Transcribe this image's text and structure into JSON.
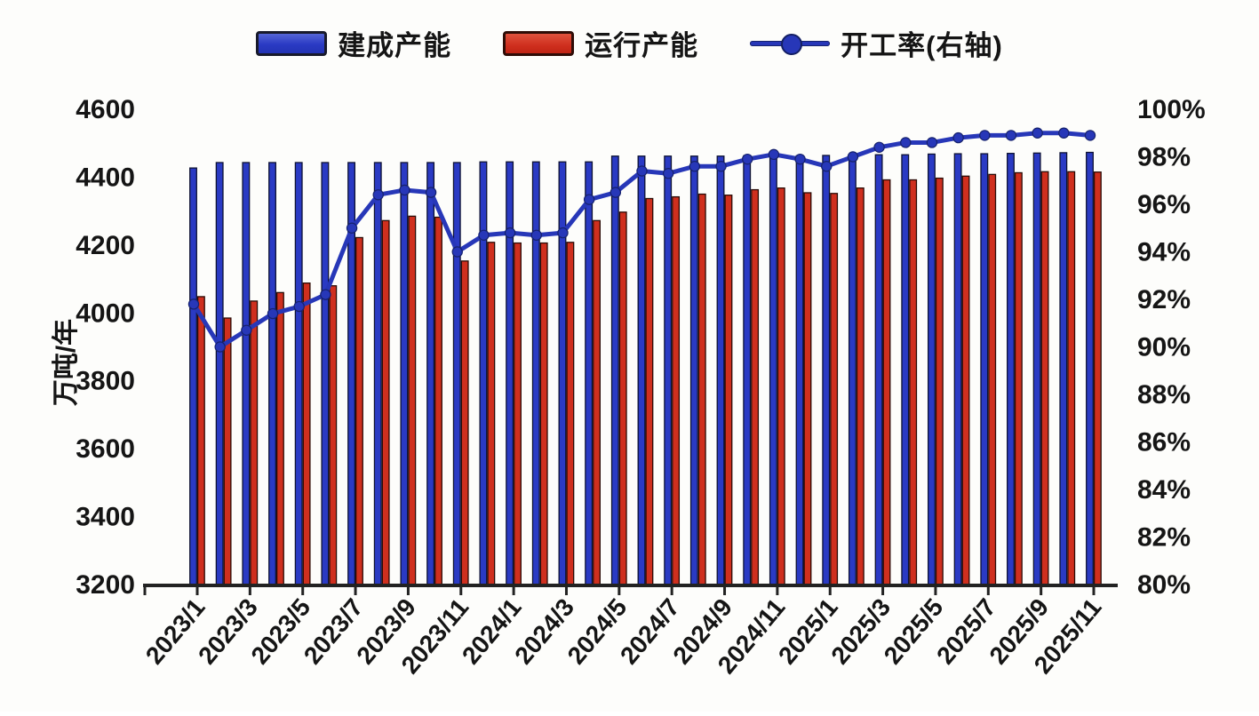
{
  "legend": [
    {
      "label": "建成产能",
      "kind": "bar",
      "color": "#2a3ac4"
    },
    {
      "label": "运行产能",
      "kind": "bar",
      "color": "#cf2f1e"
    },
    {
      "label": "开工率(右轴)",
      "kind": "line",
      "color": "#2737b8"
    }
  ],
  "left_axis": {
    "title": "万吨/年",
    "max": 4600,
    "step": 200,
    "ticks": [
      "4600",
      "4400",
      "4200",
      "4000",
      "3800",
      "3600",
      "3400",
      "3200"
    ]
  },
  "right_axis": {
    "max": 100,
    "step": 2,
    "ticks": [
      "100%",
      "98%",
      "96%",
      "94%",
      "92%",
      "90%",
      "88%",
      "86%",
      "84%",
      "82%",
      "80%"
    ]
  },
  "chart_data": {
    "type": "bar",
    "title": "",
    "xlabel": "",
    "ylabel": "万吨/年",
    "left_ylim": [
      3200,
      4600
    ],
    "right_ylim": [
      80,
      100
    ],
    "grid": false,
    "legend_position": "top",
    "categories": [
      "2023/1",
      "2023/2",
      "2023/3",
      "2023/4",
      "2023/5",
      "2023/6",
      "2023/7",
      "2023/8",
      "2023/9",
      "2023/10",
      "2023/11",
      "2023/12",
      "2024/1",
      "2024/2",
      "2024/3",
      "2024/4",
      "2024/5",
      "2024/6",
      "2024/7",
      "2024/8",
      "2024/9",
      "2024/10",
      "2024/11",
      "2024/12",
      "2025/1",
      "2025/2",
      "2025/3",
      "2025/4",
      "2025/5",
      "2025/6",
      "2025/7",
      "2025/8",
      "2025/9",
      "2025/10",
      "2025/11"
    ],
    "x_tick_labels": [
      "2023/1",
      "2023/3",
      "2023/5",
      "2023/7",
      "2023/9",
      "2023/11",
      "2024/1",
      "2024/3",
      "2024/5",
      "2024/7",
      "2024/9",
      "2024/11",
      "2025/1",
      "2025/3",
      "2025/5",
      "2025/7",
      "2025/9",
      "2025/11"
    ],
    "series": [
      {
        "name": "建成产能",
        "type": "bar",
        "axis": "left",
        "color": "#2a3ac4",
        "values": [
          4427,
          4443,
          4443,
          4443,
          4443,
          4443,
          4443,
          4443,
          4443,
          4443,
          4443,
          4445,
          4445,
          4445,
          4445,
          4445,
          4462,
          4462,
          4462,
          4462,
          4462,
          4463,
          4463,
          4463,
          4464,
          4464,
          4466,
          4466,
          4468,
          4469,
          4469,
          4470,
          4471,
          4472,
          4473
        ]
      },
      {
        "name": "运行产能",
        "type": "bar",
        "axis": "left",
        "color": "#cf2f1e",
        "values": [
          4048,
          3985,
          4035,
          4060,
          4088,
          4080,
          4222,
          4272,
          4285,
          4282,
          4153,
          4208,
          4206,
          4206,
          4208,
          4272,
          4297,
          4337,
          4342,
          4350,
          4347,
          4363,
          4368,
          4354,
          4352,
          4368,
          4392,
          4392,
          4397,
          4403,
          4408,
          4413,
          4416,
          4416,
          4415
        ]
      },
      {
        "name": "开工率(右轴)",
        "type": "line",
        "axis": "right",
        "color": "#2737b8",
        "values": [
          91.8,
          90.0,
          90.7,
          91.4,
          91.7,
          92.2,
          95.0,
          96.4,
          96.6,
          96.5,
          94.0,
          94.7,
          94.8,
          94.7,
          94.8,
          96.2,
          96.5,
          97.4,
          97.3,
          97.6,
          97.6,
          97.9,
          98.1,
          97.9,
          97.6,
          98.0,
          98.4,
          98.6,
          98.6,
          98.8,
          98.9,
          98.9,
          99.0,
          99.0,
          98.9
        ]
      }
    ]
  }
}
